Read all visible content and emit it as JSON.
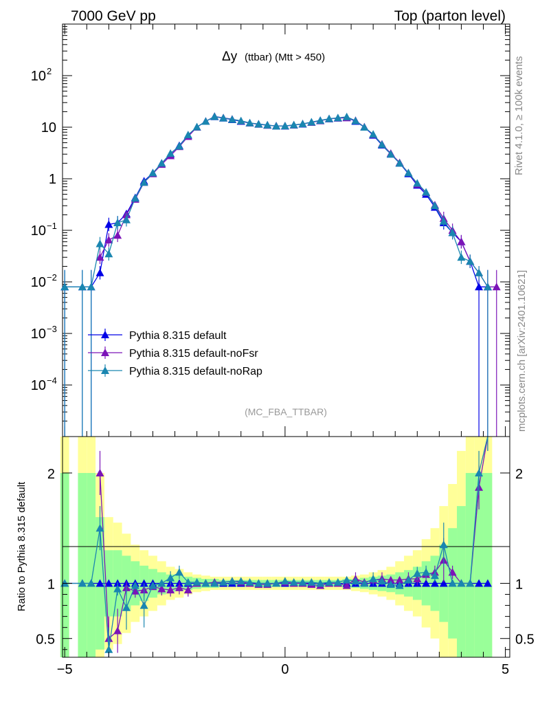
{
  "header": {
    "left": "7000 GeV pp",
    "right": "Top (parton level)"
  },
  "side_labels": {
    "rivet": "Rivet 4.1.0, ≥ 100k events",
    "mcplots": "mcplots.cern.ch [arXiv:2401.10621]"
  },
  "colors": {
    "default": "#0000e6",
    "noFsr": "#7b14b8",
    "noRap": "#1a86b0",
    "band_yellow": "#ffff99",
    "band_green": "#99ff99"
  },
  "chart_data": [
    {
      "type": "line",
      "title": "Δy (ttbar) (Mtt > 450)",
      "title_main": "Δy",
      "title_sub": "(ttbar) (Mtt > 450)",
      "watermark": "(MC_FBA_TTBAR)",
      "xlim": [
        -5.05,
        5.1
      ],
      "ylim": [
        1e-05,
        1000
      ],
      "yscale": "log",
      "xticks": [
        -5,
        0,
        5
      ],
      "xtick_labels": [
        "−5",
        "0",
        "5"
      ],
      "yticks": [
        0.0001,
        0.001,
        0.01,
        0.1,
        1,
        10,
        100
      ],
      "ytick_labels": [
        {
          "base": "10",
          "exp": "−4"
        },
        {
          "base": "10",
          "exp": "−3"
        },
        {
          "base": "10",
          "exp": "−2"
        },
        {
          "base": "10",
          "exp": "−1"
        },
        {
          "base": "1",
          "exp": ""
        },
        {
          "base": "10",
          "exp": ""
        },
        {
          "base": "10",
          "exp": "2"
        }
      ],
      "legend_position": "lower-left",
      "x": [
        -5.0,
        -4.6,
        -4.4,
        -4.2,
        -4.0,
        -3.8,
        -3.6,
        -3.4,
        -3.2,
        -3.0,
        -2.8,
        -2.6,
        -2.4,
        -2.2,
        -2.0,
        -1.8,
        -1.6,
        -1.4,
        -1.2,
        -1.0,
        -0.8,
        -0.6,
        -0.4,
        -0.2,
        0.0,
        0.2,
        0.4,
        0.6,
        0.8,
        1.0,
        1.2,
        1.4,
        1.6,
        1.8,
        2.0,
        2.2,
        2.4,
        2.6,
        2.8,
        3.0,
        3.2,
        3.4,
        3.6,
        3.8,
        4.0,
        4.2,
        4.4,
        4.6,
        4.8
      ],
      "series": [
        {
          "name": "Pythia 8.315 default",
          "color": "#0000e6",
          "values": [
            0.008,
            0.008,
            0.008,
            0.015,
            0.13,
            0.14,
            0.21,
            0.43,
            0.9,
            1.3,
            2.0,
            3.0,
            4.4,
            7.0,
            10.0,
            13.0,
            16.0,
            15.0,
            14.0,
            13.0,
            12.0,
            11.5,
            11.0,
            10.5,
            10.5,
            11.0,
            11.5,
            12.5,
            13.5,
            14.5,
            15.0,
            15.5,
            13.0,
            10.0,
            7.0,
            4.5,
            3.0,
            2.0,
            1.25,
            0.75,
            0.5,
            0.28,
            0.14,
            0.09,
            0.06,
            0.025,
            0.008,
            0.008,
            null
          ]
        },
        {
          "name": "Pythia 8.315 default-noFsr",
          "color": "#7b14b8",
          "values": [
            null,
            null,
            null,
            0.03,
            0.065,
            0.08,
            0.2,
            0.4,
            0.85,
            1.25,
            1.9,
            2.8,
            4.2,
            6.6,
            10.0,
            13.0,
            16.2,
            15.2,
            14.3,
            13.2,
            12.0,
            11.4,
            10.9,
            10.6,
            10.6,
            11.0,
            11.6,
            12.4,
            13.3,
            14.5,
            15.0,
            15.2,
            13.5,
            10.1,
            7.2,
            4.7,
            3.1,
            2.05,
            1.3,
            0.78,
            0.54,
            0.31,
            0.17,
            0.1,
            0.06,
            0.025,
            0.015,
            0.008,
            0.008
          ]
        },
        {
          "name": "Pythia 8.315 default-noRap",
          "color": "#1a86b0",
          "values": [
            0.008,
            0.008,
            0.008,
            0.055,
            0.035,
            0.14,
            0.16,
            0.42,
            0.85,
            1.3,
            2.0,
            3.1,
            4.3,
            7.1,
            10.1,
            13.0,
            16.1,
            15.1,
            14.2,
            13.3,
            12.1,
            11.5,
            11.0,
            10.5,
            10.6,
            11.1,
            11.6,
            12.6,
            13.5,
            14.6,
            15.2,
            15.9,
            13.3,
            10.0,
            7.3,
            4.6,
            3.0,
            2.0,
            1.3,
            0.82,
            0.55,
            0.3,
            0.15,
            0.09,
            0.03,
            0.025,
            0.015,
            0.008,
            null
          ]
        }
      ]
    },
    {
      "type": "line",
      "ylabel": "Ratio to Pythia 8.315 default",
      "xlim": [
        -5.05,
        5.1
      ],
      "ylim": [
        0.33,
        2.33
      ],
      "yticks": [
        0.5,
        1,
        2
      ],
      "ytick_labels": [
        "0.5",
        "1",
        "2"
      ],
      "x": [
        -5.0,
        -4.6,
        -4.4,
        -4.2,
        -4.0,
        -3.8,
        -3.6,
        -3.4,
        -3.2,
        -3.0,
        -2.8,
        -2.6,
        -2.4,
        -2.2,
        -2.0,
        -1.8,
        -1.6,
        -1.4,
        -1.2,
        -1.0,
        -0.8,
        -0.6,
        -0.4,
        -0.2,
        0.0,
        0.2,
        0.4,
        0.6,
        0.8,
        1.0,
        1.2,
        1.4,
        1.6,
        1.8,
        2.0,
        2.2,
        2.4,
        2.6,
        2.8,
        3.0,
        3.2,
        3.4,
        3.6,
        3.8,
        4.0,
        4.2,
        4.4,
        4.6,
        4.8
      ],
      "band_yellow": [
        2.4,
        2.4,
        2.4,
        2.0,
        1.6,
        1.55,
        1.45,
        1.35,
        1.3,
        1.25,
        1.2,
        1.15,
        1.13,
        1.1,
        1.08,
        1.07,
        1.06,
        1.06,
        1.06,
        1.06,
        1.06,
        1.06,
        1.06,
        1.06,
        1.06,
        1.06,
        1.06,
        1.06,
        1.06,
        1.06,
        1.06,
        1.06,
        1.07,
        1.08,
        1.1,
        1.12,
        1.15,
        1.2,
        1.25,
        1.3,
        1.4,
        1.5,
        1.7,
        1.9,
        2.2,
        2.4,
        2.4,
        2.4,
        null
      ],
      "band_green": [
        2.0,
        2.0,
        2.0,
        1.6,
        1.3,
        1.3,
        1.25,
        1.2,
        1.16,
        1.13,
        1.1,
        1.08,
        1.07,
        1.06,
        1.05,
        1.04,
        1.04,
        1.03,
        1.03,
        1.03,
        1.03,
        1.03,
        1.03,
        1.03,
        1.03,
        1.03,
        1.03,
        1.03,
        1.03,
        1.03,
        1.03,
        1.04,
        1.04,
        1.05,
        1.06,
        1.07,
        1.08,
        1.1,
        1.12,
        1.15,
        1.2,
        1.25,
        1.35,
        1.5,
        1.7,
        2.0,
        2.0,
        2.0,
        null
      ],
      "series": [
        {
          "name": "Pythia 8.315 default",
          "color": "#0000e6",
          "values": [
            1.0,
            1.0,
            1.0,
            1.0,
            1.0,
            1.0,
            1.0,
            1.0,
            1.0,
            1.0,
            1.0,
            1.0,
            1.0,
            1.0,
            1.0,
            1.0,
            1.0,
            1.0,
            1.0,
            1.0,
            1.0,
            1.0,
            1.0,
            1.0,
            1.0,
            1.0,
            1.0,
            1.0,
            1.0,
            1.0,
            1.0,
            1.0,
            1.0,
            1.0,
            1.0,
            1.0,
            1.0,
            1.0,
            1.0,
            1.0,
            1.0,
            1.0,
            1.0,
            1.0,
            1.0,
            1.0,
            1.0,
            1.0,
            null
          ]
        },
        {
          "name": "Pythia 8.315 default-noFsr",
          "color": "#7b14b8",
          "values": [
            null,
            null,
            null,
            2.0,
            0.5,
            0.57,
            0.96,
            0.93,
            0.94,
            0.97,
            0.95,
            0.94,
            0.96,
            0.94,
            1.0,
            1.0,
            1.01,
            1.01,
            1.02,
            1.01,
            1.0,
            0.99,
            0.99,
            1.0,
            1.01,
            1.0,
            1.0,
            0.99,
            0.98,
            1.0,
            1.0,
            0.98,
            1.04,
            1.01,
            1.03,
            1.04,
            1.03,
            1.03,
            1.04,
            1.04,
            1.08,
            1.1,
            1.21,
            1.1,
            1.0,
            1.0,
            1.87,
            2.4,
            null
          ]
        },
        {
          "name": "Pythia 8.315 default-noRap",
          "color": "#1a86b0",
          "values": [
            1.0,
            1.0,
            1.0,
            1.5,
            0.4,
            0.95,
            0.78,
            0.98,
            0.8,
            0.98,
            1.0,
            1.05,
            1.1,
            1.01,
            1.01,
            1.0,
            1.0,
            1.01,
            1.02,
            1.02,
            1.01,
            1.0,
            1.0,
            1.0,
            1.02,
            1.01,
            1.01,
            1.01,
            1.0,
            1.01,
            1.01,
            1.03,
            1.02,
            1.0,
            1.04,
            1.02,
            0.99,
            0.98,
            1.03,
            1.09,
            1.1,
            1.07,
            1.35,
            1.0,
            1.0,
            1.0,
            2.0,
            2.4,
            null
          ]
        }
      ]
    }
  ]
}
